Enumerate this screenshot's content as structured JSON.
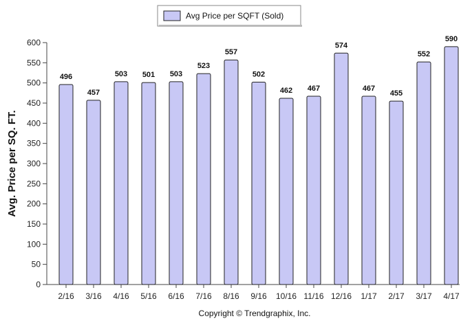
{
  "chart_data": {
    "type": "bar",
    "categories": [
      "2/16",
      "3/16",
      "4/16",
      "5/16",
      "6/16",
      "7/16",
      "8/16",
      "9/16",
      "10/16",
      "11/16",
      "12/16",
      "1/17",
      "2/17",
      "3/17",
      "4/17"
    ],
    "series": [
      {
        "name": "Avg Price per SQFT (Sold)",
        "values": [
          496,
          457,
          503,
          501,
          503,
          523,
          557,
          502,
          462,
          467,
          574,
          467,
          455,
          552,
          590
        ]
      }
    ],
    "ylabel": "Avg. Price per SQ. FT.",
    "xlabel": "",
    "ylim": [
      0,
      600
    ],
    "yticks": [
      0,
      50,
      100,
      150,
      200,
      250,
      300,
      350,
      400,
      450,
      500,
      550,
      600
    ],
    "legend": "top-center",
    "grid": false,
    "colors": {
      "bar_fill": "#c8c8f5",
      "bar_stroke": "#222222"
    }
  },
  "footer": {
    "copyright": "Copyright © Trendgraphix, Inc."
  }
}
